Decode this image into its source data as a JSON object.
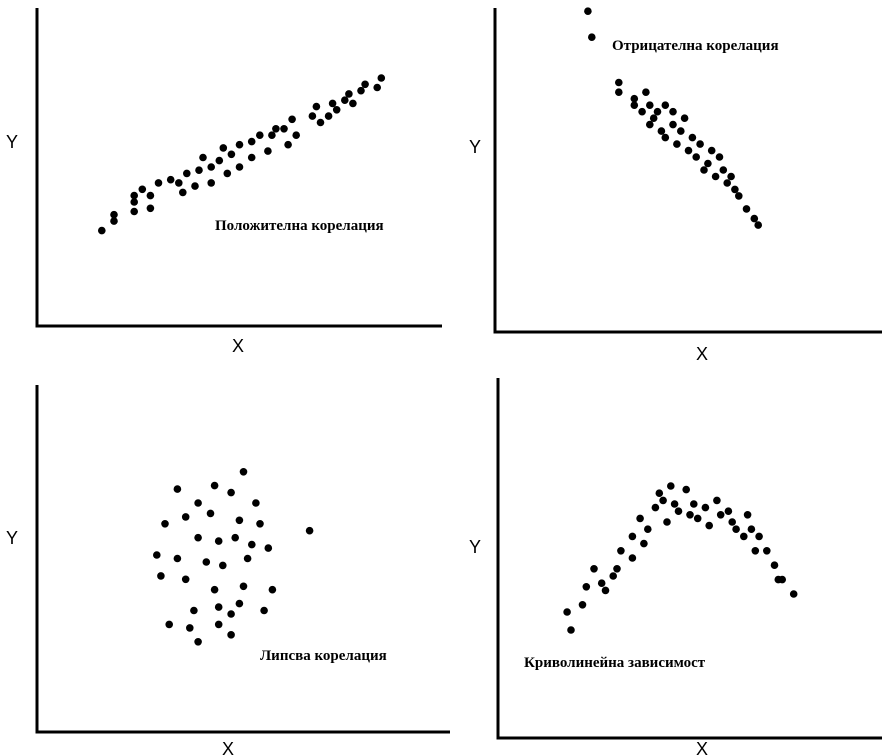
{
  "chart_data": [
    {
      "type": "scatter",
      "title": "Положителна корелация",
      "xlabel": "X",
      "ylabel": "Y",
      "xlim": [
        0,
        100
      ],
      "ylim": [
        0,
        100
      ],
      "grid": false,
      "points": [
        [
          16,
          30
        ],
        [
          19,
          33
        ],
        [
          19,
          35
        ],
        [
          24,
          36
        ],
        [
          24,
          39
        ],
        [
          24,
          41
        ],
        [
          28,
          37
        ],
        [
          26,
          43
        ],
        [
          28,
          41
        ],
        [
          30,
          45
        ],
        [
          33,
          46
        ],
        [
          36,
          42
        ],
        [
          35,
          45
        ],
        [
          37,
          48
        ],
        [
          39,
          44
        ],
        [
          40,
          49
        ],
        [
          41,
          53
        ],
        [
          43,
          45
        ],
        [
          43,
          50
        ],
        [
          45,
          52
        ],
        [
          46,
          56
        ],
        [
          47,
          48
        ],
        [
          48,
          54
        ],
        [
          50,
          50
        ],
        [
          50,
          57
        ],
        [
          53,
          53
        ],
        [
          53,
          58
        ],
        [
          55,
          60
        ],
        [
          57,
          55
        ],
        [
          58,
          60
        ],
        [
          59,
          62
        ],
        [
          62,
          57
        ],
        [
          61,
          62
        ],
        [
          63,
          65
        ],
        [
          64,
          60
        ],
        [
          68,
          66
        ],
        [
          69,
          69
        ],
        [
          70,
          64
        ],
        [
          72,
          66
        ],
        [
          73,
          70
        ],
        [
          74,
          68
        ],
        [
          76,
          71
        ],
        [
          77,
          73
        ],
        [
          78,
          70
        ],
        [
          80,
          74
        ],
        [
          81,
          76
        ],
        [
          84,
          75
        ],
        [
          85,
          78
        ]
      ]
    },
    {
      "type": "scatter",
      "title": "Отрицателна корелация",
      "xlabel": "X",
      "ylabel": "Y",
      "xlim": [
        0,
        100
      ],
      "ylim": [
        0,
        100
      ],
      "grid": false,
      "points": [
        [
          24,
          99
        ],
        [
          25,
          91
        ],
        [
          32,
          77
        ],
        [
          32,
          74
        ],
        [
          36,
          72
        ],
        [
          36,
          70
        ],
        [
          38,
          68
        ],
        [
          39,
          74
        ],
        [
          40,
          70
        ],
        [
          40,
          64
        ],
        [
          41,
          66
        ],
        [
          42,
          68
        ],
        [
          43,
          62
        ],
        [
          44,
          60
        ],
        [
          44,
          70
        ],
        [
          46,
          68
        ],
        [
          46,
          64
        ],
        [
          47,
          58
        ],
        [
          48,
          62
        ],
        [
          49,
          66
        ],
        [
          50,
          56
        ],
        [
          51,
          60
        ],
        [
          52,
          54
        ],
        [
          53,
          58
        ],
        [
          54,
          50
        ],
        [
          55,
          52
        ],
        [
          56,
          56
        ],
        [
          57,
          48
        ],
        [
          58,
          54
        ],
        [
          59,
          50
        ],
        [
          60,
          46
        ],
        [
          61,
          48
        ],
        [
          62,
          44
        ],
        [
          63,
          42
        ],
        [
          65,
          38
        ],
        [
          67,
          35
        ],
        [
          68,
          33
        ]
      ]
    },
    {
      "type": "scatter",
      "title": "Липсва корелация",
      "xlabel": "X",
      "ylabel": "Y",
      "xlim": [
        0,
        100
      ],
      "ylim": [
        0,
        100
      ],
      "grid": false,
      "points": [
        [
          50,
          75
        ],
        [
          34,
          70
        ],
        [
          43,
          71
        ],
        [
          39,
          66
        ],
        [
          47,
          69
        ],
        [
          53,
          66
        ],
        [
          54,
          60
        ],
        [
          31,
          60
        ],
        [
          36,
          62
        ],
        [
          42,
          63
        ],
        [
          49,
          61
        ],
        [
          66,
          58
        ],
        [
          39,
          56
        ],
        [
          44,
          55
        ],
        [
          48,
          56
        ],
        [
          52,
          54
        ],
        [
          56,
          53
        ],
        [
          29,
          51
        ],
        [
          34,
          50
        ],
        [
          41,
          49
        ],
        [
          45,
          48
        ],
        [
          51,
          50
        ],
        [
          30,
          45
        ],
        [
          36,
          44
        ],
        [
          43,
          41
        ],
        [
          50,
          42
        ],
        [
          57,
          41
        ],
        [
          55,
          35
        ],
        [
          38,
          35
        ],
        [
          44,
          36
        ],
        [
          47,
          34
        ],
        [
          49,
          37
        ],
        [
          32,
          31
        ],
        [
          37,
          30
        ],
        [
          44,
          31
        ],
        [
          47,
          28
        ],
        [
          39,
          26
        ]
      ]
    },
    {
      "type": "scatter",
      "title": "Криволинейна зависимост",
      "xlabel": "X",
      "ylabel": "Y",
      "xlim": [
        0,
        100
      ],
      "ylim": [
        0,
        100
      ],
      "grid": false,
      "points": [
        [
          18,
          35
        ],
        [
          19,
          30
        ],
        [
          22,
          37
        ],
        [
          23,
          42
        ],
        [
          25,
          47
        ],
        [
          27,
          43
        ],
        [
          28,
          41
        ],
        [
          30,
          45
        ],
        [
          31,
          47
        ],
        [
          32,
          52
        ],
        [
          35,
          56
        ],
        [
          35,
          50
        ],
        [
          37,
          61
        ],
        [
          38,
          54
        ],
        [
          39,
          58
        ],
        [
          41,
          64
        ],
        [
          42,
          68
        ],
        [
          43,
          66
        ],
        [
          44,
          60
        ],
        [
          45,
          70
        ],
        [
          46,
          65
        ],
        [
          47,
          63
        ],
        [
          49,
          69
        ],
        [
          50,
          62
        ],
        [
          51,
          65
        ],
        [
          52,
          61
        ],
        [
          54,
          64
        ],
        [
          55,
          59
        ],
        [
          57,
          66
        ],
        [
          58,
          62
        ],
        [
          60,
          63
        ],
        [
          61,
          60
        ],
        [
          62,
          58
        ],
        [
          64,
          56
        ],
        [
          65,
          62
        ],
        [
          66,
          58
        ],
        [
          67,
          52
        ],
        [
          68,
          56
        ],
        [
          70,
          52
        ],
        [
          72,
          48
        ],
        [
          73,
          44
        ],
        [
          74,
          44
        ],
        [
          77,
          40
        ]
      ]
    }
  ]
}
